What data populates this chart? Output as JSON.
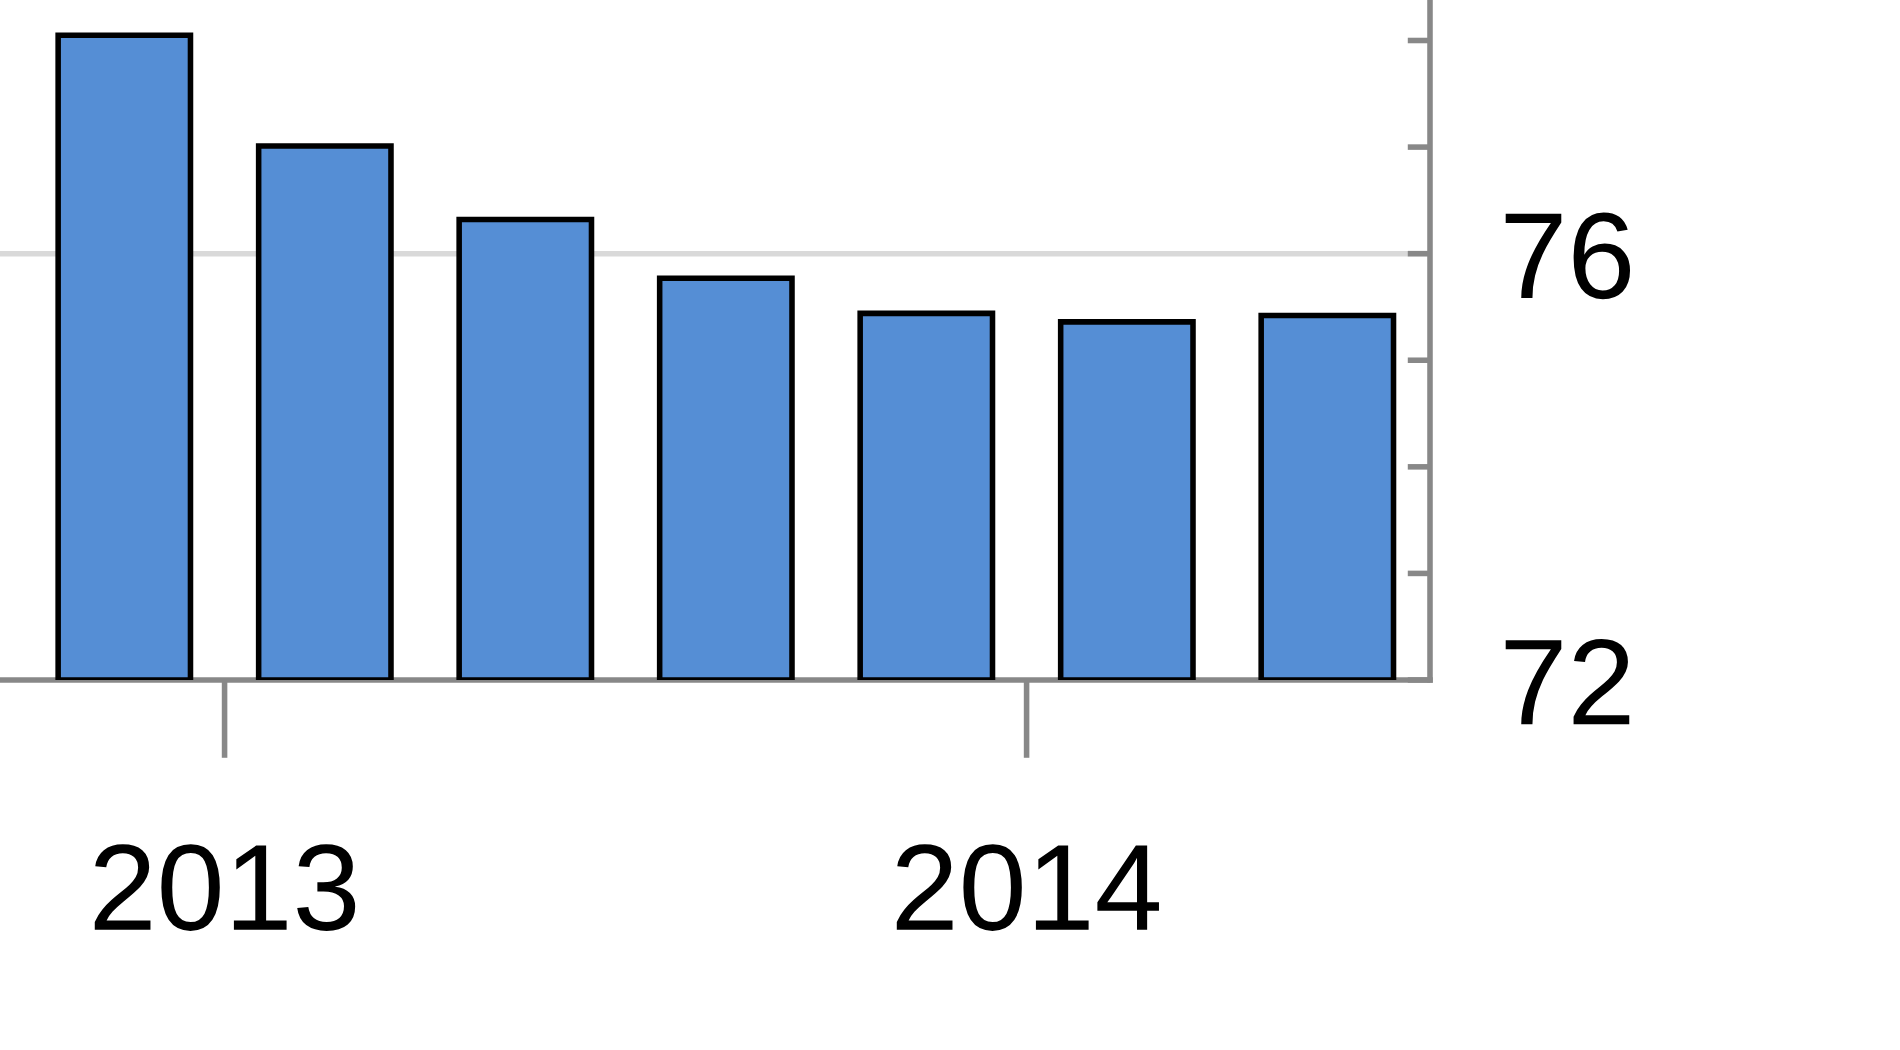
{
  "chart_data": {
    "type": "bar",
    "x": [
      2012.875,
      2013.125,
      2013.375,
      2013.625,
      2013.875,
      2014.125,
      2014.375
    ],
    "values": [
      78.05,
      77.01,
      76.32,
      75.77,
      75.44,
      75.36,
      75.42
    ],
    "color": "#558ed5",
    "xlim": [
      2012.72,
      2014.503
    ],
    "xticks": [
      2013,
      2014
    ],
    "ylim": [
      72,
      78.38
    ],
    "yticks": [
      72,
      {
        "value": 73,
        "label": null
      },
      {
        "value": 74,
        "label": null
      },
      {
        "value": 75,
        "label": null
      },
      76,
      {
        "value": 77,
        "label": null
      },
      {
        "value": 78,
        "label": null
      }
    ],
    "ref_lines": [
      {
        "axis": "y",
        "value": 76,
        "label": null,
        "color": "#d9d9d9"
      }
    ],
    "grid": false,
    "legend": false
  }
}
